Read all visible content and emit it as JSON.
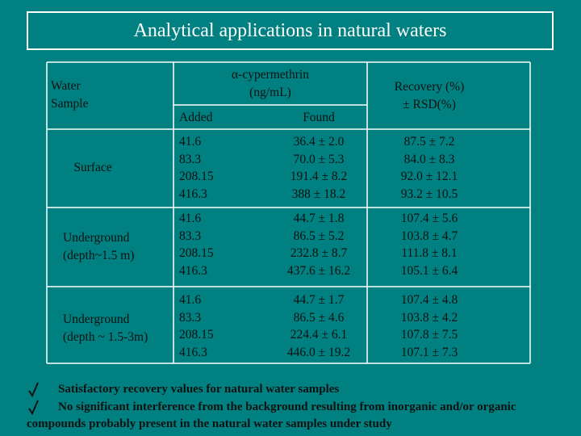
{
  "title": "Analytical  applications in natural waters",
  "table": {
    "header": {
      "sample": [
        "Water",
        "Sample"
      ],
      "analyte": [
        "α-cypermethrin",
        "(ng/mL)"
      ],
      "added": "Added",
      "found": "Found",
      "recovery": [
        "Recovery (%)",
        "± RSD(%)"
      ]
    },
    "rows": [
      {
        "sample": [
          "Surface"
        ],
        "added": [
          "41.6",
          "83.3",
          "208.15",
          "416.3"
        ],
        "found": [
          "36.4 ± 2.0",
          "70.0 ± 5.3",
          "191.4 ± 8.2",
          "388 ± 18.2"
        ],
        "recovery": [
          "87.5 ± 7.2",
          "84.0 ± 8.3",
          "92.0 ± 12.1",
          "93.2 ± 10.5"
        ]
      },
      {
        "sample": [
          "Underground",
          "(depth~1.5 m)"
        ],
        "added": [
          "41.6",
          "83.3",
          "208.15",
          "416.3"
        ],
        "found": [
          "44.7 ± 1.8",
          "86.5 ± 5.2",
          "232.8 ± 8.7",
          "437.6 ± 16.2"
        ],
        "recovery": [
          "107.4 ± 5.6",
          "103.8 ± 4.7",
          "111.8 ± 8.1",
          "105.1 ± 6.4"
        ]
      },
      {
        "sample": [
          "Underground",
          "(depth ~ 1.5-3m)"
        ],
        "added": [
          "41.6",
          "83.3",
          "208.15",
          "416.3"
        ],
        "found": [
          "44.7 ± 1.7",
          "86.5 ± 4.6",
          "224.4 ± 6.1",
          "446.0 ± 19.2"
        ],
        "recovery": [
          "107.4 ± 4.8",
          "103.8 ± 4.2",
          "107.8 ± 7.5",
          "107.1 ± 7.3"
        ]
      }
    ]
  },
  "bullets": [
    "Satisfactory recovery values for natural water samples",
    "No significant interference from the background resulting from inorganic and/or organic  compounds probably present in the natural water samples under study"
  ]
}
